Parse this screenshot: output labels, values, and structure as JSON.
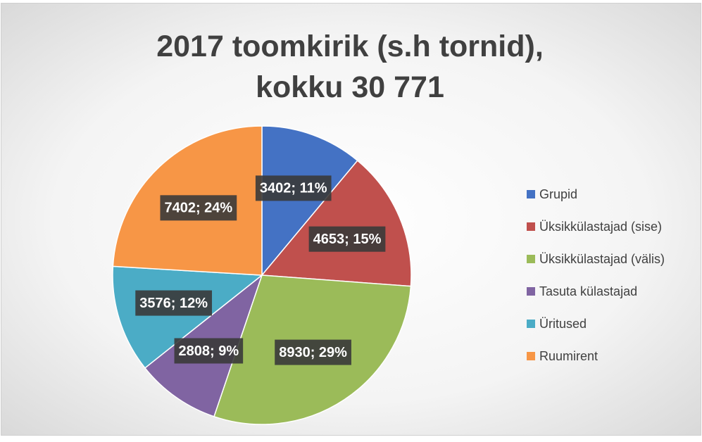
{
  "chart_data": {
    "type": "pie",
    "title": "2017 toomkirik (s.h tornid), kokku 30 771",
    "categories": [
      "Grupid",
      "Üksikkülastajad (sise)",
      "Üksikkülastajad (välis)",
      "Tasuta külastajad",
      "Üritused",
      "Ruumirent"
    ],
    "values": [
      3402,
      4653,
      8930,
      2808,
      3576,
      7402
    ],
    "value_labels": [
      "3402; 11%",
      "4653; 15%",
      "8930; 29%",
      "2808; 9%",
      "3576; 12%",
      "7402; 24%"
    ],
    "colors": [
      "#4472c4",
      "#c0504d",
      "#9bbb59",
      "#8064a2",
      "#4bacc6",
      "#f79646"
    ],
    "legend": "right"
  }
}
